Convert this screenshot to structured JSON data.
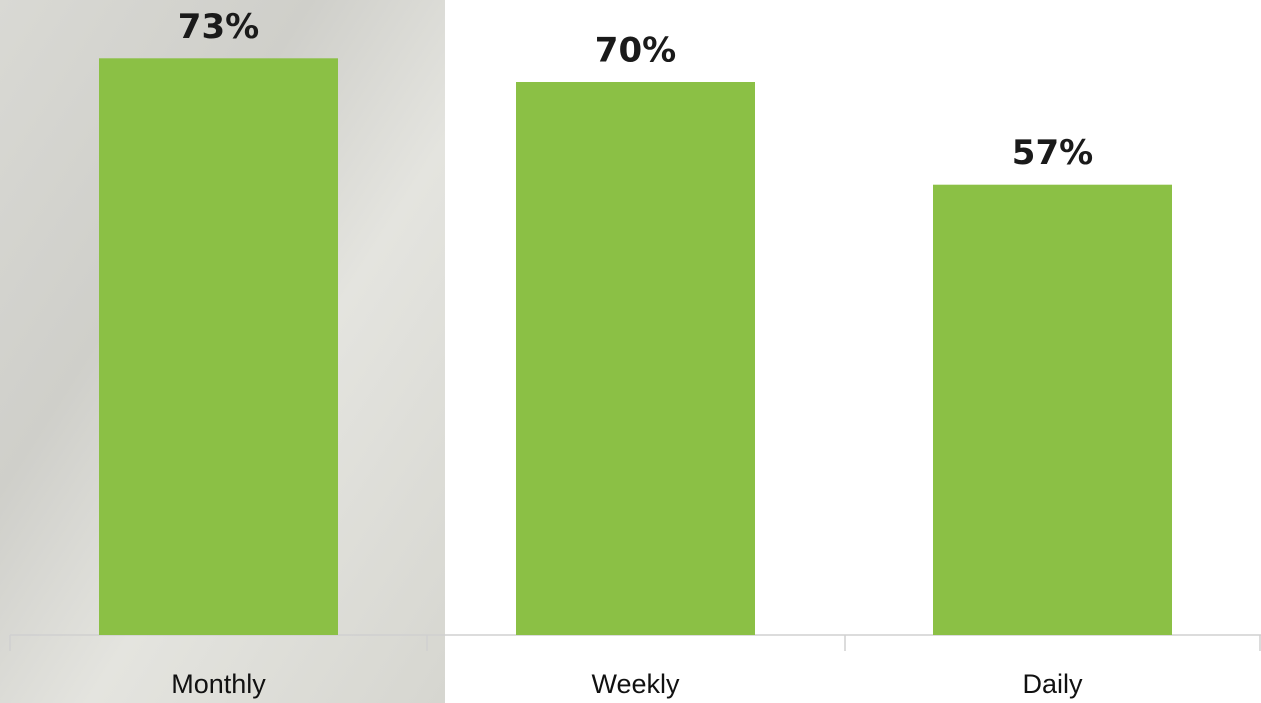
{
  "chart_data": {
    "type": "bar",
    "categories": [
      "Monthly",
      "Weekly",
      "Daily"
    ],
    "values": [
      73,
      70,
      57
    ],
    "value_labels": [
      "73%",
      "70%",
      "57%"
    ],
    "color": "#8bc045"
  }
}
